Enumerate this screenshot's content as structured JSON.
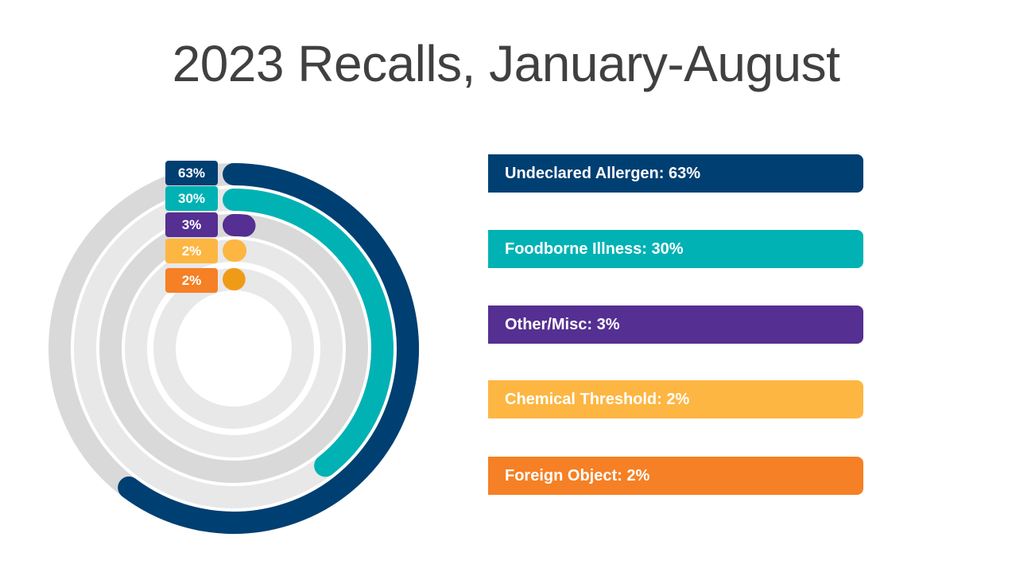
{
  "title": "2023 Recalls, January-August",
  "chart_data": {
    "type": "radial-bar",
    "title": "2023 Recalls, January-August",
    "categories": [
      "Undeclared Allergen",
      "Foodborne Illness",
      "Other/Misc",
      "Chemical Threshold",
      "Foreign Object"
    ],
    "values": [
      63,
      30,
      3,
      2,
      2
    ],
    "unit": "%",
    "value_labels": [
      "63%",
      "30%",
      "3%",
      "2%",
      "2%"
    ],
    "legend_labels": [
      "Undeclared Allergen: 63%",
      "Foodborne Illness: 30%",
      "Other/Misc: 3%",
      "Chemical Threshold: 2%",
      "Foreign Object: 2%"
    ],
    "colors": [
      "#003f72",
      "#00b2b4",
      "#552f91",
      "#fdb642",
      "#f58025"
    ],
    "arc_colors": [
      "#003f72",
      "#00b2b4",
      "#552f91",
      "#fdb642",
      "#f09b17"
    ],
    "track_colors": [
      "#d9d9d9",
      "#e8e8e8",
      "#d9d9d9",
      "#e8e8e8",
      "#e8e8e8"
    ],
    "arc_sweep_deg": [
      217,
      142,
      5,
      1,
      0.5
    ],
    "legend_position": "right"
  }
}
